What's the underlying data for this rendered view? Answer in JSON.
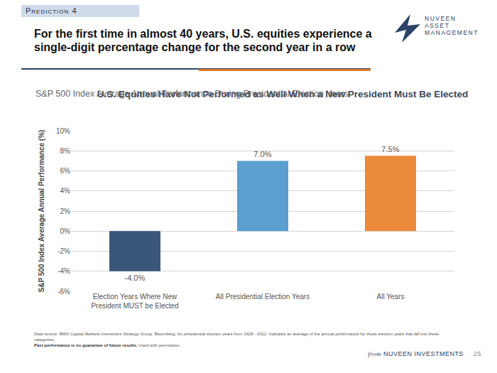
{
  "header": {
    "tag": "Prediction 4",
    "headline": "For the first time in almost 40 years, U.S. equities experience a single-digit percentage change for the second year in a row",
    "logo": [
      "NUVEEN",
      "ASSET",
      "MANAGEMENT"
    ]
  },
  "chart_data": {
    "type": "bar",
    "title": "U.S. Equities Have Not Performed as Well When a New President Must Be Elected",
    "subtitle": "S&P 500 Index Average Annual Performance During Presidential Election Years",
    "ylabel": "S&P 500 Index Average Annual Performance (%)",
    "categories": [
      "Election Years Where New President MUST be Elected",
      "All Presidential Election Years",
      "All Years"
    ],
    "values": [
      -4.0,
      7.0,
      7.5
    ],
    "value_labels": [
      "-4.0%",
      "7.0%",
      "7.5%"
    ],
    "colors": [
      "#3a5678",
      "#5b9fd0",
      "#ec8a3c"
    ],
    "ylim": [
      -6,
      10
    ],
    "yticks": [
      {
        "value": -6,
        "label": "-6%"
      },
      {
        "value": -4,
        "label": "-4%"
      },
      {
        "value": -2,
        "label": "-2%"
      },
      {
        "value": 0,
        "label": "0%"
      },
      {
        "value": 2,
        "label": "2%"
      },
      {
        "value": 4,
        "label": "4%"
      },
      {
        "value": 6,
        "label": "6%"
      },
      {
        "value": 8,
        "label": "8%"
      },
      {
        "value": 10,
        "label": "10%"
      }
    ],
    "grid": true,
    "data_labels": true
  },
  "footnote": {
    "source": "Data source: BMO Capital Markets Investment Strategy Group, Bloomberg, for presidential election years from 1928 - 2012. Indicates an average of the annual performance for those election years that fall into these categories.",
    "disclaimer": "Past performance is no guarantee of future results.",
    "permission": "Used with permission."
  },
  "footer": {
    "prefix": "from",
    "brand": "NUVEEN INVESTMENTS",
    "page": 25
  }
}
